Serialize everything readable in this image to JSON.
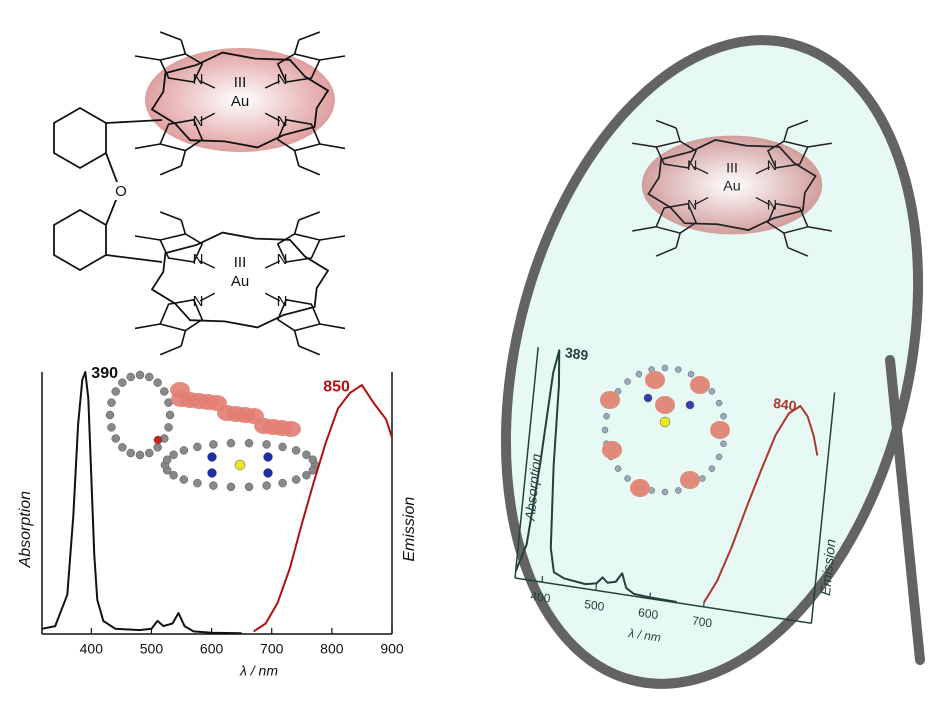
{
  "molecule_labels": {
    "metal": "Au",
    "oxidation": "III",
    "nitrogen": "N",
    "oxygen": "O"
  },
  "chart_data": [
    {
      "type": "line",
      "xlabel": "λ / nm",
      "ylabel": "Absorption",
      "y2label": "Emission",
      "xlim": [
        318,
        900
      ],
      "xticks": [
        400,
        500,
        600,
        700,
        800,
        900
      ],
      "ylim": [
        0,
        1
      ],
      "annotations": [
        "390",
        "850"
      ],
      "series": [
        {
          "color": "#111111",
          "x": [
            318,
            340,
            360,
            370,
            378,
            385,
            390,
            395,
            400,
            405,
            410,
            420,
            440,
            480,
            500,
            510,
            520,
            535,
            545,
            555,
            570,
            600,
            650
          ],
          "values": [
            0.02,
            0.03,
            0.15,
            0.45,
            0.8,
            0.97,
            1.0,
            0.9,
            0.6,
            0.3,
            0.13,
            0.05,
            0.02,
            0.015,
            0.02,
            0.05,
            0.03,
            0.04,
            0.08,
            0.03,
            0.01,
            0.005,
            0.003
          ]
        },
        {
          "color": "#b01010",
          "x": [
            670,
            690,
            710,
            730,
            750,
            770,
            790,
            810,
            830,
            850,
            870,
            890,
            900
          ],
          "values": [
            0.01,
            0.04,
            0.12,
            0.25,
            0.42,
            0.58,
            0.73,
            0.86,
            0.92,
            0.95,
            0.88,
            0.82,
            0.75
          ]
        }
      ]
    },
    {
      "type": "line",
      "xlabel": "λ / nm",
      "ylabel": "Absorption",
      "y2label": "Emission",
      "xlim": [
        350,
        900
      ],
      "xticks": [
        400,
        500,
        600,
        700
      ],
      "ylim": [
        0,
        1
      ],
      "annotations": [
        "389",
        "840"
      ],
      "series": [
        {
          "color": "#23403a",
          "x": [
            350,
            365,
            375,
            382,
            389,
            395,
            400,
            410,
            420,
            440,
            480,
            500,
            510,
            520,
            535,
            545,
            555,
            570,
            600,
            650
          ],
          "values": [
            0.03,
            0.15,
            0.5,
            0.9,
            1.0,
            0.85,
            0.5,
            0.15,
            0.05,
            0.03,
            0.02,
            0.03,
            0.06,
            0.04,
            0.05,
            0.09,
            0.03,
            0.01,
            0.005,
            0.003
          ]
        },
        {
          "color": "#b0352c",
          "x": [
            700,
            720,
            740,
            760,
            780,
            800,
            820,
            840,
            855,
            870,
            880
          ],
          "values": [
            0.02,
            0.12,
            0.27,
            0.45,
            0.62,
            0.78,
            0.88,
            0.92,
            0.88,
            0.8,
            0.72
          ]
        }
      ]
    }
  ]
}
